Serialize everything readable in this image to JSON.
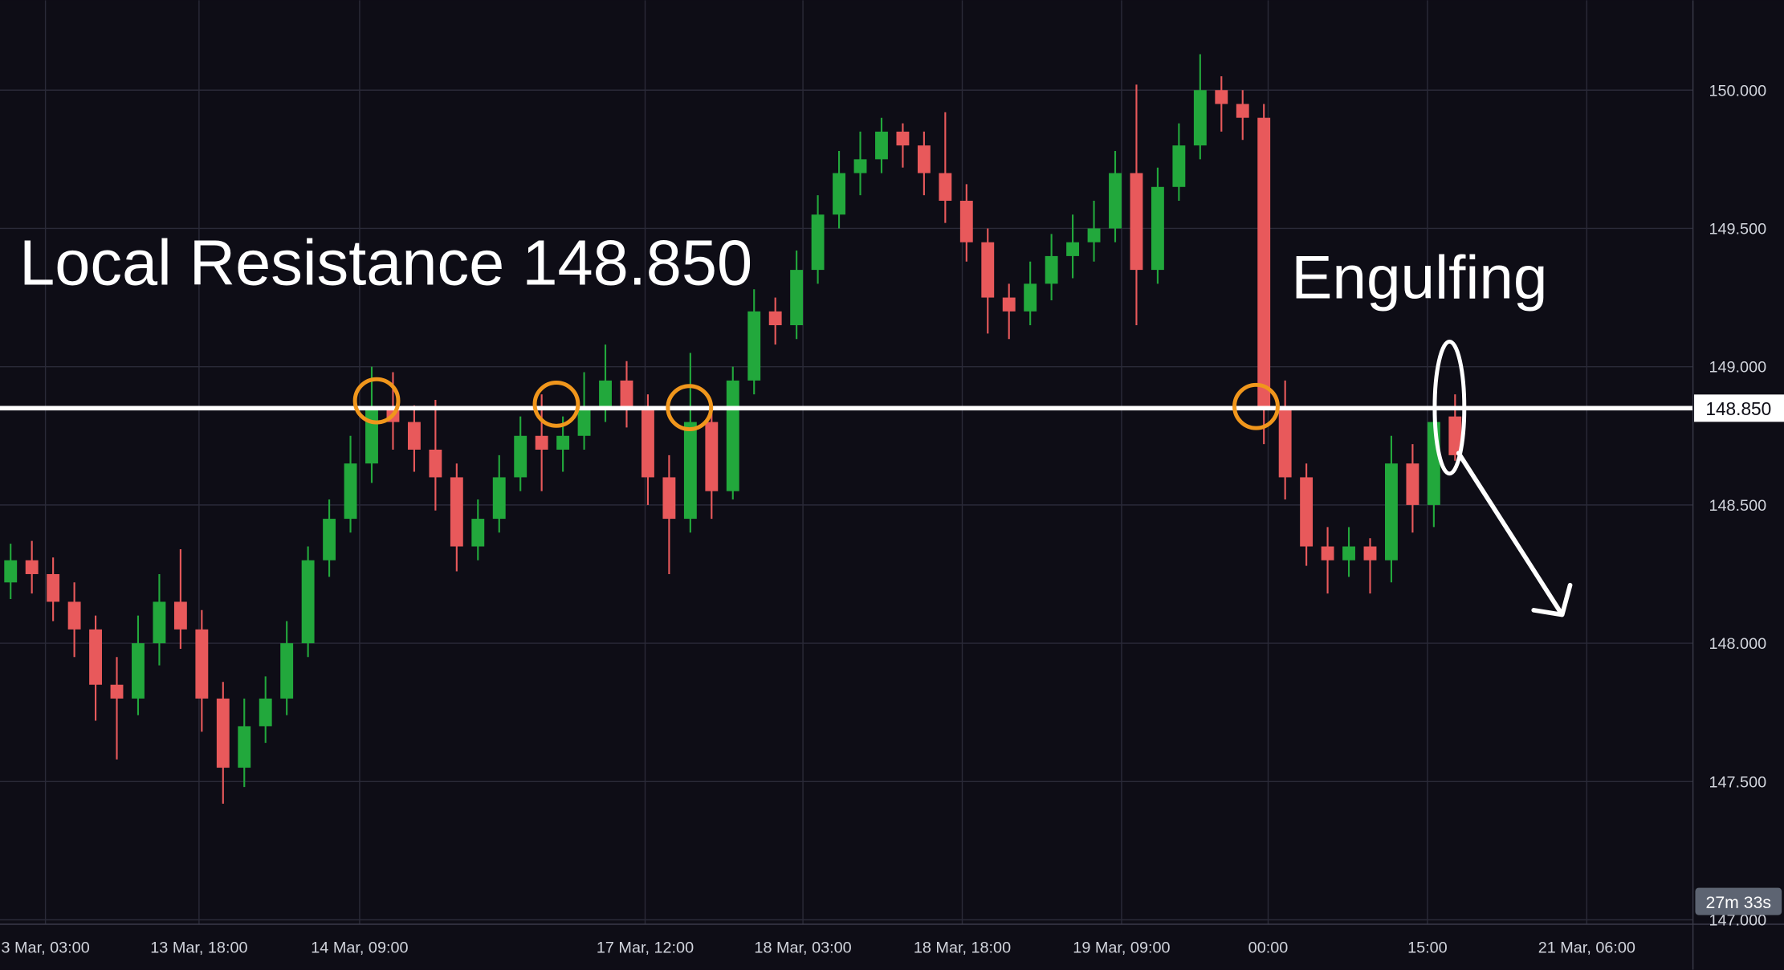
{
  "chart_data": {
    "type": "candlestick",
    "up_color": "#22a83c",
    "down_color": "#e8595b",
    "background": "#0e0d16",
    "grid": true,
    "ylim": [
      146.984,
      150.325
    ],
    "yticks": [
      {
        "value": 147,
        "label": "147.000"
      },
      {
        "value": 147.5,
        "label": "147.500"
      },
      {
        "value": 148,
        "label": "148.000"
      },
      {
        "value": 148.5,
        "label": "148.500"
      },
      {
        "value": 149,
        "label": "149.000"
      },
      {
        "value": 149.5,
        "label": "149.500"
      },
      {
        "value": 150,
        "label": "150.000"
      }
    ],
    "xlim": [
      0,
      79.7
    ],
    "xticks": [
      {
        "value": 2.14,
        "label": "3 Mar, 03:00"
      },
      {
        "value": 9.37,
        "label": "13 Mar, 18:00"
      },
      {
        "value": 16.93,
        "label": "14 Mar, 09:00"
      },
      {
        "value": 30.37,
        "label": "17 Mar, 12:00"
      },
      {
        "value": 37.8,
        "label": "18 Mar, 03:00"
      },
      {
        "value": 45.3,
        "label": "18 Mar, 18:00"
      },
      {
        "value": 52.8,
        "label": "19 Mar, 09:00"
      },
      {
        "value": 59.7,
        "label": "00:00"
      },
      {
        "value": 67.2,
        "label": "15:00"
      },
      {
        "value": 74.7,
        "label": "21 Mar, 06:00"
      }
    ],
    "open": [
      148.22,
      148.3,
      148.25,
      148.15,
      148.05,
      147.85,
      147.8,
      148.0,
      148.15,
      148.05,
      147.8,
      147.55,
      147.7,
      147.8,
      148.0,
      148.3,
      148.45,
      148.65,
      148.85,
      148.8,
      148.7,
      148.6,
      148.35,
      148.45,
      148.6,
      148.75,
      148.7,
      148.75,
      148.85,
      148.95,
      148.85,
      148.6,
      148.45,
      148.8,
      148.55,
      148.95,
      149.2,
      149.15,
      149.35,
      149.55,
      149.7,
      149.75,
      149.85,
      149.8,
      149.7,
      149.6,
      149.45,
      149.25,
      149.2,
      149.3,
      149.4,
      149.45,
      149.5,
      149.7,
      149.35,
      149.65,
      149.8,
      150.0,
      149.95,
      149.9,
      148.85,
      148.6,
      148.35,
      148.3,
      148.35,
      148.3,
      148.65,
      148.5,
      148.82
    ],
    "high": [
      148.36,
      148.37,
      148.31,
      148.22,
      148.1,
      147.95,
      148.1,
      148.25,
      148.34,
      148.12,
      147.86,
      147.8,
      147.88,
      148.08,
      148.35,
      148.52,
      148.75,
      149.0,
      148.98,
      148.86,
      148.88,
      148.65,
      148.52,
      148.68,
      148.82,
      148.9,
      148.82,
      148.98,
      149.08,
      149.02,
      148.9,
      148.68,
      149.05,
      148.85,
      149.0,
      149.28,
      149.25,
      149.42,
      149.62,
      149.78,
      149.85,
      149.9,
      149.88,
      149.85,
      149.92,
      149.66,
      149.5,
      149.3,
      149.38,
      149.48,
      149.55,
      149.6,
      149.78,
      150.02,
      149.72,
      149.88,
      150.13,
      150.05,
      150.0,
      149.95,
      148.95,
      148.65,
      148.42,
      148.42,
      148.38,
      148.75,
      148.72,
      148.85,
      148.9
    ],
    "low": [
      148.16,
      148.18,
      148.08,
      147.95,
      147.72,
      147.58,
      147.74,
      147.92,
      147.98,
      147.68,
      147.42,
      147.48,
      147.64,
      147.74,
      147.95,
      148.24,
      148.4,
      148.58,
      148.7,
      148.62,
      148.48,
      148.26,
      148.3,
      148.4,
      148.55,
      148.55,
      148.62,
      148.7,
      148.8,
      148.78,
      148.5,
      148.25,
      148.4,
      148.45,
      148.52,
      148.9,
      149.08,
      149.1,
      149.3,
      149.5,
      149.62,
      149.7,
      149.72,
      149.62,
      149.52,
      149.38,
      149.12,
      149.1,
      149.15,
      149.24,
      149.32,
      149.38,
      149.45,
      149.15,
      149.3,
      149.6,
      149.75,
      149.85,
      149.82,
      148.72,
      148.52,
      148.28,
      148.18,
      148.24,
      148.18,
      148.22,
      148.4,
      148.42,
      148.66
    ],
    "close": [
      148.3,
      148.25,
      148.15,
      148.05,
      147.85,
      147.8,
      148.0,
      148.15,
      148.05,
      147.8,
      147.55,
      147.7,
      147.8,
      148.0,
      148.3,
      148.45,
      148.65,
      148.85,
      148.8,
      148.7,
      148.6,
      148.35,
      148.45,
      148.6,
      148.75,
      148.7,
      148.75,
      148.85,
      148.95,
      148.85,
      148.6,
      148.45,
      148.8,
      148.55,
      148.95,
      149.2,
      149.15,
      149.35,
      149.55,
      149.7,
      149.75,
      149.85,
      149.8,
      149.7,
      149.6,
      149.45,
      149.25,
      149.2,
      149.3,
      149.4,
      149.45,
      149.5,
      149.7,
      149.35,
      149.65,
      149.8,
      150.0,
      149.95,
      149.9,
      148.85,
      148.6,
      148.35,
      148.3,
      148.35,
      148.3,
      148.65,
      148.5,
      148.8,
      148.68
    ],
    "level": {
      "value": 148.85,
      "label": "148.850"
    },
    "annotations": [
      "Local Resistance 148.850",
      "Engulfing"
    ],
    "countdown": "27m 33s"
  }
}
